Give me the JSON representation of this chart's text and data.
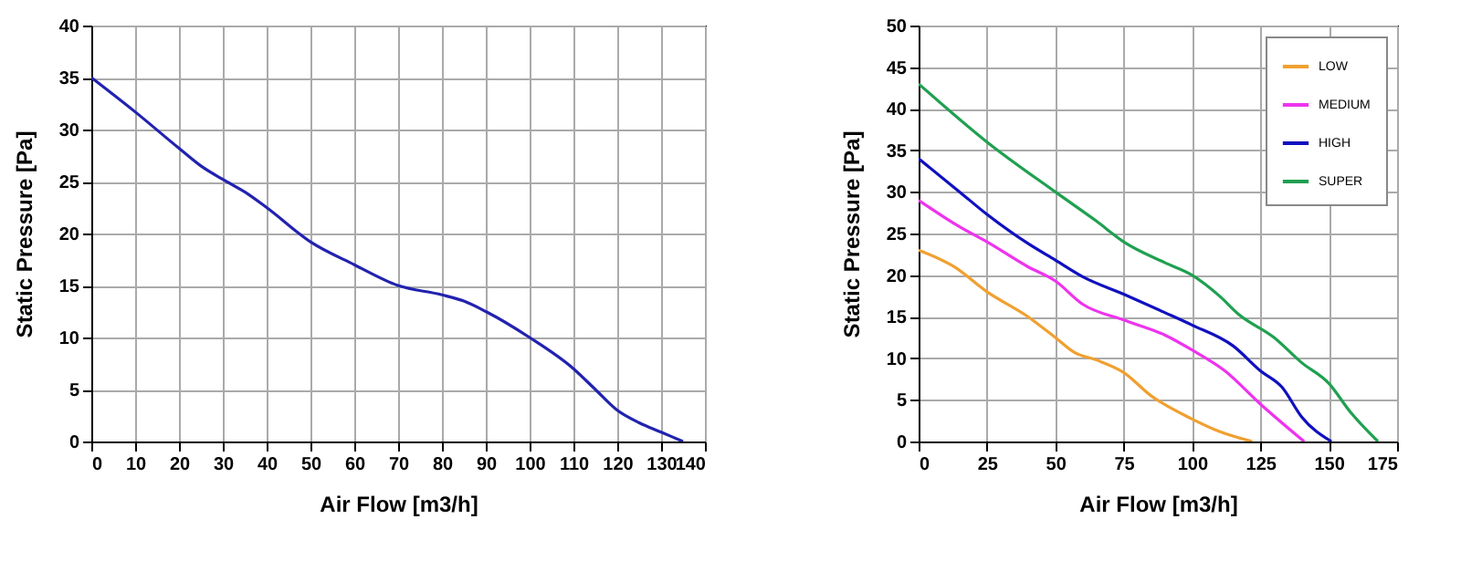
{
  "chart_data": [
    {
      "type": "line",
      "xlabel": "Air Flow [m3/h]",
      "ylabel": "Static Pressure [Pa]",
      "xlim": [
        0,
        140
      ],
      "ylim": [
        0,
        40
      ],
      "xticks": [
        0,
        10,
        20,
        30,
        40,
        50,
        60,
        70,
        80,
        90,
        100,
        110,
        120,
        130,
        140
      ],
      "yticks": [
        0,
        5,
        10,
        15,
        20,
        25,
        30,
        35,
        40
      ],
      "grid": true,
      "legend": false,
      "series": [
        {
          "color": "#2222b0",
          "x": [
            0,
            10,
            20,
            25,
            30,
            35,
            40,
            50,
            60,
            70,
            80,
            85,
            90,
            100,
            110,
            115,
            120,
            125,
            130,
            135
          ],
          "values": [
            35,
            31.7,
            28.2,
            26.5,
            25.2,
            24,
            22.5,
            19.2,
            17,
            15,
            14.1,
            13.5,
            12.5,
            10,
            7,
            5,
            3,
            1.8,
            0.9,
            0
          ]
        }
      ]
    },
    {
      "type": "line",
      "xlabel": "Air Flow [m3/h]",
      "ylabel": "Static Pressure [Pa]",
      "xlim": [
        0,
        175
      ],
      "ylim": [
        0,
        50
      ],
      "xticks": [
        0,
        25,
        50,
        75,
        100,
        125,
        150,
        175
      ],
      "yticks": [
        0,
        5,
        10,
        15,
        20,
        25,
        30,
        35,
        40,
        45,
        50
      ],
      "grid": true,
      "legend": "top right",
      "series": [
        {
          "name": "LOW",
          "color": "#f0a030",
          "x": [
            0,
            13,
            25,
            40,
            50,
            57,
            65,
            75,
            85,
            100,
            110,
            122
          ],
          "values": [
            23,
            21,
            18,
            15,
            12.5,
            10.7,
            9.8,
            8.3,
            5.5,
            2.7,
            1.2,
            0
          ]
        },
        {
          "name": "MEDIUM",
          "color": "#ee33ee",
          "x": [
            0,
            15,
            25,
            40,
            50,
            60,
            75,
            90,
            100,
            112,
            125,
            141
          ],
          "values": [
            29,
            25.8,
            24,
            21,
            19.3,
            16.5,
            14.6,
            12.8,
            11,
            8.5,
            4.5,
            0
          ]
        },
        {
          "name": "HIGH",
          "color": "#1010c0",
          "x": [
            0,
            15,
            25,
            40,
            50,
            60,
            75,
            90,
            100,
            115,
            125,
            133,
            140,
            151
          ],
          "values": [
            34,
            30,
            27.3,
            23.8,
            21.8,
            19.8,
            17.7,
            15.5,
            14,
            11.5,
            8.5,
            6.5,
            3,
            0
          ]
        },
        {
          "name": "SUPER",
          "color": "#20a050",
          "x": [
            0,
            25,
            50,
            65,
            75,
            90,
            100,
            110,
            117,
            130,
            140,
            150,
            158,
            168
          ],
          "values": [
            43,
            36,
            30,
            26.5,
            24,
            21.5,
            20,
            17.5,
            15.3,
            12.5,
            9.5,
            7,
            3.5,
            0
          ]
        }
      ]
    }
  ]
}
